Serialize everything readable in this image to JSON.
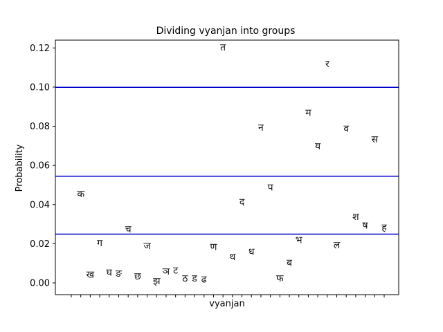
{
  "chart_data": {
    "type": "scatter",
    "title": "Dividing vyanjan into groups",
    "xlabel": "vyanjan",
    "ylabel": "Probability",
    "ylim": [
      -0.006,
      0.124
    ],
    "yticks": [
      "0.00",
      "0.02",
      "0.04",
      "0.06",
      "0.08",
      "0.10",
      "0.12"
    ],
    "ytick_values": [
      0.0,
      0.02,
      0.04,
      0.06,
      0.08,
      0.1,
      0.12
    ],
    "x_tick_count": 34,
    "grid": false,
    "points_color": "#000000",
    "threshold_lines": {
      "color": "#0000cc",
      "values": [
        0.0999,
        0.0545,
        0.0249
      ]
    },
    "points": [
      {
        "label": "क",
        "x": 1,
        "y": 0.0455
      },
      {
        "label": "ख",
        "x": 2,
        "y": 0.0045
      },
      {
        "label": "ग",
        "x": 3,
        "y": 0.0205
      },
      {
        "label": "घ",
        "x": 4,
        "y": 0.0055
      },
      {
        "label": "ङ",
        "x": 5,
        "y": 0.005
      },
      {
        "label": "च",
        "x": 6,
        "y": 0.0275
      },
      {
        "label": "छ",
        "x": 7,
        "y": 0.0035
      },
      {
        "label": "ज",
        "x": 8,
        "y": 0.019
      },
      {
        "label": "झ",
        "x": 9,
        "y": 0.001
      },
      {
        "label": "ञ",
        "x": 10,
        "y": 0.006
      },
      {
        "label": "ट",
        "x": 11,
        "y": 0.0065
      },
      {
        "label": "ठ",
        "x": 12,
        "y": 0.0025
      },
      {
        "label": "ड",
        "x": 13,
        "y": 0.0025
      },
      {
        "label": "ढ",
        "x": 14,
        "y": 0.002
      },
      {
        "label": "ण",
        "x": 15,
        "y": 0.0185
      },
      {
        "label": "त",
        "x": 16,
        "y": 0.1205
      },
      {
        "label": "थ",
        "x": 17,
        "y": 0.0135
      },
      {
        "label": "द",
        "x": 18,
        "y": 0.0415
      },
      {
        "label": "ध",
        "x": 19,
        "y": 0.016
      },
      {
        "label": "न",
        "x": 20,
        "y": 0.0795
      },
      {
        "label": "प",
        "x": 21,
        "y": 0.049
      },
      {
        "label": "फ",
        "x": 22,
        "y": 0.0025
      },
      {
        "label": "ब",
        "x": 23,
        "y": 0.0105
      },
      {
        "label": "भ",
        "x": 24,
        "y": 0.022
      },
      {
        "label": "म",
        "x": 25,
        "y": 0.087
      },
      {
        "label": "य",
        "x": 26,
        "y": 0.07
      },
      {
        "label": "र",
        "x": 27,
        "y": 0.112
      },
      {
        "label": "ल",
        "x": 28,
        "y": 0.0195
      },
      {
        "label": "व",
        "x": 29,
        "y": 0.079
      },
      {
        "label": "श",
        "x": 30,
        "y": 0.034
      },
      {
        "label": "ष",
        "x": 31,
        "y": 0.0295
      },
      {
        "label": "स",
        "x": 32,
        "y": 0.0735
      },
      {
        "label": "ह",
        "x": 33,
        "y": 0.0285
      }
    ]
  }
}
